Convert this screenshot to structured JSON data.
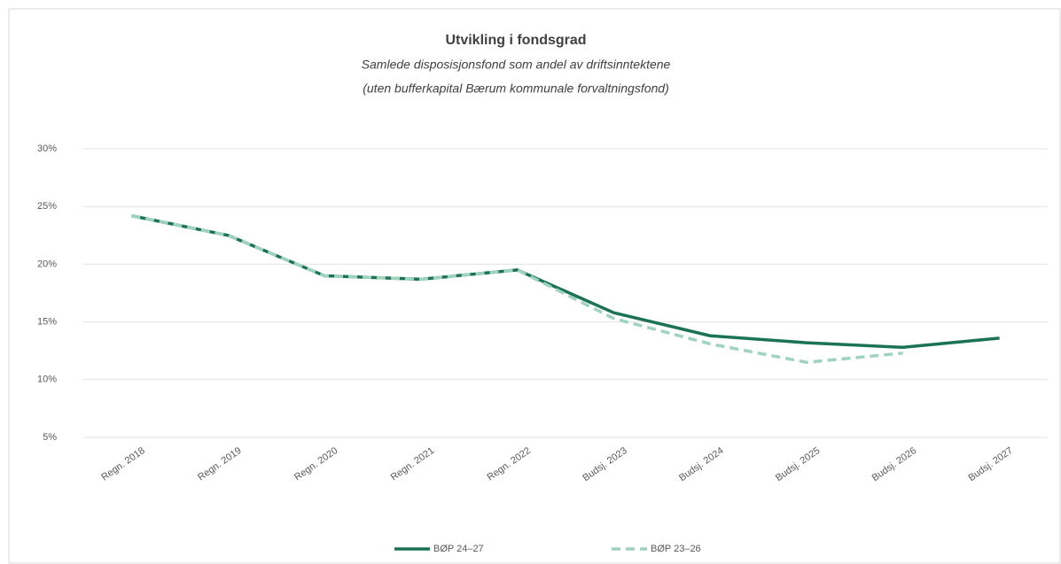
{
  "chart_data": {
    "type": "line",
    "title": "Utvikling i fondsgrad",
    "subtitle": [
      "Samlede disposisjonsfond som andel av driftsinntektene",
      "(uten bufferkapital Bærum kommunale forvaltningsfond)"
    ],
    "categories": [
      "Regn. 2018",
      "Regn. 2019",
      "Regn. 2020",
      "Regn. 2021",
      "Regn. 2022",
      "Budsj. 2023",
      "Budsj. 2024",
      "Budsj. 2025",
      "Budsj. 2026",
      "Budsj. 2027"
    ],
    "series": [
      {
        "name": "BØP 24–27",
        "color": "#1a7355",
        "dashed": false,
        "values": [
          24.2,
          22.5,
          19.0,
          18.7,
          19.5,
          15.8,
          13.8,
          13.2,
          12.8,
          13.6
        ]
      },
      {
        "name": "BØP 23–26",
        "color": "#9fd3be",
        "dashed": true,
        "values": [
          24.2,
          22.5,
          19.0,
          18.7,
          19.5,
          15.3,
          13.1,
          11.5,
          12.3,
          null
        ]
      }
    ],
    "ylim": [
      5,
      30
    ],
    "yticks": [
      {
        "value": 5,
        "label": "5%"
      },
      {
        "value": 10,
        "label": "10%"
      },
      {
        "value": 15,
        "label": "15%"
      },
      {
        "value": 20,
        "label": "20%"
      },
      {
        "value": 25,
        "label": "25%"
      },
      {
        "value": 30,
        "label": "30%"
      }
    ],
    "grid": true,
    "legend": "bottom"
  }
}
